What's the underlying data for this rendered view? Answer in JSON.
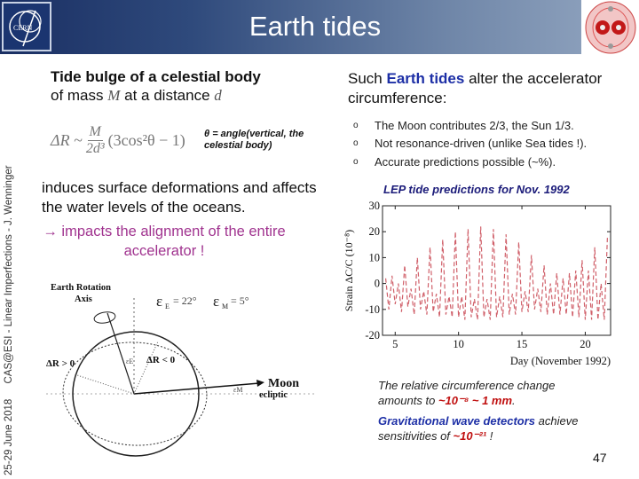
{
  "header": {
    "title": "Earth tides",
    "logo_left": "CERN",
    "logo_right": "LHC-field-map"
  },
  "sidebar": {
    "date": "25-29 June 2018",
    "event": "CAS@ESI - Linear Imperfections - J. Wenninger"
  },
  "left": {
    "heading_line1": "Tide bulge of a celestial body",
    "heading_line2_pre": "of mass ",
    "heading_M": "M",
    "heading_line2_mid": " at a distance ",
    "heading_d": "d",
    "formula": {
      "lhs": "ΔR ~",
      "num": "M",
      "den": "2d³",
      "rhs": "(3cos²θ − 1)"
    },
    "theta_note": "θ = angle(vertical, the celestial body)",
    "induces": "induces surface deformations and affects the water levels of the oceans.",
    "impacts": "→ impacts the alignment of the entire accelerator !",
    "diagram": {
      "axis_label_1": "Earth Rotation",
      "axis_label_2": "Axis",
      "eps_E": "ε",
      "eps_E_sub": "E",
      "eps_E_val": "= 22°",
      "eps_M": "ε",
      "eps_M_sub": "M",
      "eps_M_val": "= 5°",
      "dr_pos": "ΔR > 0",
      "dr_neg": "ΔR < 0",
      "moon": "Moon",
      "ecliptic": "ecliptic",
      "eps_E_small": "εE",
      "eps_M_small": "εM"
    }
  },
  "right": {
    "intro_pre": "Such ",
    "intro_highlight": "Earth tides",
    "intro_post": " alter the accelerator circumference:",
    "bullets": [
      "The Moon contributes 2/3, the Sun 1/3.",
      "Not resonance-driven (unlike Sea tides !).",
      "Accurate predictions possible (~%)."
    ],
    "bullet_marker": "o",
    "chart_title": "LEP tide predictions for Nov. 1992",
    "note1_pre": "The relative circumference change amounts to ",
    "note1_val": "~10⁻⁸  ~ 1 mm",
    "note1_post": ".",
    "note2_highlight": "Gravitational wave detectors",
    "note2_mid": " achieve sensitivities of ",
    "note2_val": "~10⁻²¹",
    "note2_post": " !"
  },
  "page_number": "47",
  "colors": {
    "series": "#d0606a",
    "highlight_blue": "#1d2fa6",
    "highlight_red": "#c01010",
    "impacts": "#a0338f"
  },
  "chart_data": {
    "type": "line",
    "title": "LEP tide predictions for Nov. 1992",
    "xlabel": "Day (November 1992)",
    "ylabel": "Strain ΔC/C (10⁻⁸)",
    "xlim": [
      4,
      22
    ],
    "ylim": [
      -20,
      30
    ],
    "xticks": [
      5,
      10,
      15,
      20
    ],
    "yticks": [
      -20,
      -10,
      0,
      10,
      20,
      30
    ],
    "grid": false,
    "x": [
      4.25,
      4.5,
      4.75,
      5,
      5.25,
      5.5,
      5.75,
      6,
      6.25,
      6.5,
      6.75,
      7,
      7.25,
      7.5,
      7.75,
      8,
      8.25,
      8.5,
      8.75,
      9,
      9.25,
      9.5,
      9.75,
      10,
      10.25,
      10.5,
      10.75,
      11,
      11.25,
      11.5,
      11.75,
      12,
      12.25,
      12.5,
      12.75,
      13,
      13.25,
      13.5,
      13.75,
      14,
      14.25,
      14.5,
      14.75,
      15,
      15.25,
      15.5,
      15.75,
      16,
      16.25,
      16.5,
      16.75,
      17,
      17.25,
      17.5,
      17.75,
      18,
      18.25,
      18.5,
      18.75,
      19,
      19.25,
      19.5,
      19.75,
      20,
      20.25,
      20.5,
      20.75,
      21,
      21.25,
      21.5,
      21.75
    ],
    "y": [
      2,
      -10,
      3,
      -8,
      0,
      -11,
      7,
      -9,
      -2,
      -12,
      10,
      -10,
      -3,
      -12,
      14,
      -11,
      -4,
      -13,
      17,
      -12,
      -5,
      -13,
      20,
      -13,
      -5,
      -14,
      21,
      -13,
      -6,
      -14,
      22,
      -13,
      -6,
      -14,
      21,
      -13,
      -5,
      -13,
      19,
      -12,
      -4,
      -12,
      16,
      -11,
      -3,
      -11,
      11,
      -10,
      -2,
      -11,
      7,
      -12,
      0,
      -12,
      4,
      -12,
      2,
      -12,
      4,
      -13,
      5,
      -13,
      9,
      -14,
      5,
      -14,
      14,
      -14,
      0,
      -14,
      18
    ]
  }
}
